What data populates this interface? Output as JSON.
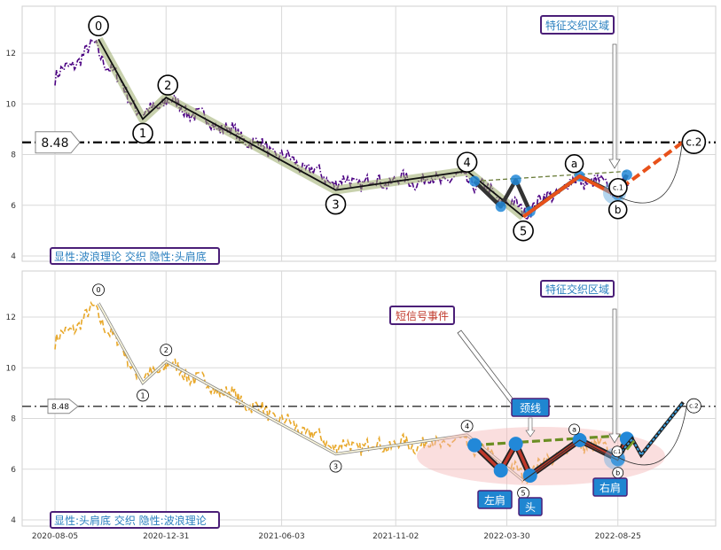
{
  "chart_data": [
    {
      "type": "line",
      "title": "",
      "xlabel": "",
      "ylabel": "",
      "ylim": [
        3.85,
        13.8
      ],
      "y_ticks": [
        4,
        6,
        8,
        10,
        12
      ],
      "grid": true,
      "hline": {
        "value": 8.48,
        "label": "8.48"
      },
      "price_color": "#4b0082",
      "overlay_text": "显性:波浪理论 交织 隐性:头肩底",
      "callout": "特征交织区域",
      "wave_points": [
        {
          "label": "0",
          "x": "2020-10-02",
          "y": 12.55
        },
        {
          "label": "1",
          "x": "2020-11-30",
          "y": 9.4
        },
        {
          "label": "2",
          "x": "2020-12-31",
          "y": 10.25
        },
        {
          "label": "3",
          "x": "2021-08-14",
          "y": 6.6
        },
        {
          "label": "4",
          "x": "2022-02-05",
          "y": 7.35
        },
        {
          "label": "5",
          "x": "2022-04-21",
          "y": 5.55
        }
      ],
      "abc_points": [
        {
          "label": "a",
          "x": "2022-07-05",
          "y": 7.15
        },
        {
          "label": "b",
          "x": "2022-08-25",
          "y": 6.35
        },
        {
          "label": "c.1",
          "x": "2022-08-30",
          "y": 6.7
        },
        {
          "label": "c.2",
          "x": "2022-11-20",
          "y": 8.5
        }
      ]
    },
    {
      "type": "line",
      "title": "",
      "xlabel": "",
      "ylabel": "",
      "ylim": [
        3.85,
        13.8
      ],
      "y_ticks": [
        4,
        6,
        8,
        10,
        12
      ],
      "x_ticks": [
        "2020-08-05",
        "2020-12-31",
        "2021-06-03",
        "2021-11-02",
        "2022-03-30",
        "2022-08-25"
      ],
      "grid": true,
      "hline": {
        "value": 8.48,
        "label": "8.48"
      },
      "price_color": "#e8a82a",
      "overlay_text": "显性:头肩底 交织 隐性:波浪理论",
      "callout": "特征交织区域",
      "short_signal_label": "短信号事件",
      "neckline_label": "颈线",
      "shoulder_labels": {
        "left": "左肩",
        "head": "头",
        "right": "右肩"
      },
      "hs_points": [
        {
          "x": "2022-02-15",
          "y": 6.95
        },
        {
          "x": "2022-03-22",
          "y": 5.95
        },
        {
          "x": "2022-04-11",
          "y": 7.0
        },
        {
          "x": "2022-04-30",
          "y": 5.75
        },
        {
          "x": "2022-07-05",
          "y": 7.15
        },
        {
          "x": "2022-08-25",
          "y": 6.4
        },
        {
          "x": "2022-09-06",
          "y": 7.2
        }
      ],
      "wave_points": [
        {
          "label": "0",
          "x": "2020-10-02",
          "y": 12.55
        },
        {
          "label": "1",
          "x": "2020-11-30",
          "y": 9.4
        },
        {
          "label": "2",
          "x": "2020-12-31",
          "y": 10.25
        },
        {
          "label": "3",
          "x": "2021-08-14",
          "y": 6.6
        },
        {
          "label": "4",
          "x": "2022-02-05",
          "y": 7.35
        },
        {
          "label": "5",
          "x": "2022-04-21",
          "y": 5.55
        }
      ],
      "abc_points": [
        {
          "label": "a",
          "x": "2022-07-05",
          "y": 7.15
        },
        {
          "label": "b",
          "x": "2022-08-25",
          "y": 6.35
        },
        {
          "label": "c.1",
          "x": "2022-08-30",
          "y": 6.7
        },
        {
          "label": "c.2",
          "x": "2022-11-20",
          "y": 8.5
        }
      ]
    }
  ]
}
